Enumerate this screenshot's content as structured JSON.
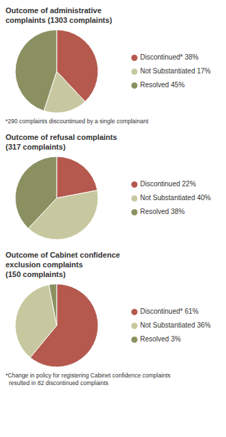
{
  "chart_data": [
    {
      "type": "pie",
      "title": "Outcome of administrative\ncomplaints (1303 complaints)",
      "categories": [
        "Discontinued* 38%",
        "Not Substantiated 17%",
        "Resolved 45%"
      ],
      "values": [
        38,
        17,
        45
      ],
      "colors": [
        "#b5594e",
        "#c8c8a0",
        "#8a9060"
      ],
      "legend": "right",
      "annotations": [
        "*290 complaints discountinued by a single complainant"
      ]
    },
    {
      "type": "pie",
      "title": "Outcome of refusal complaints\n(317 complaints)",
      "categories": [
        "Discontinued 22%",
        "Not Substantiated 40%",
        "Resolved 38%"
      ],
      "values": [
        22,
        40,
        38
      ],
      "colors": [
        "#b5594e",
        "#c8c8a0",
        "#8a9060"
      ],
      "legend": "right"
    },
    {
      "type": "pie",
      "title": "Outcome of Cabinet confidence\nexclusion complaints\n(150 complaints)",
      "categories": [
        "Discontinued* 61%",
        "Not Substantiated 36%",
        "Resolved 3%"
      ],
      "values": [
        61,
        36,
        3
      ],
      "colors": [
        "#b5594e",
        "#c8c8a0",
        "#8a9060"
      ],
      "legend": "right",
      "annotations": [
        "*Change in policy for registering Cabinet confidence complaints\n  resulted in 82 discontinued complaints"
      ]
    }
  ]
}
